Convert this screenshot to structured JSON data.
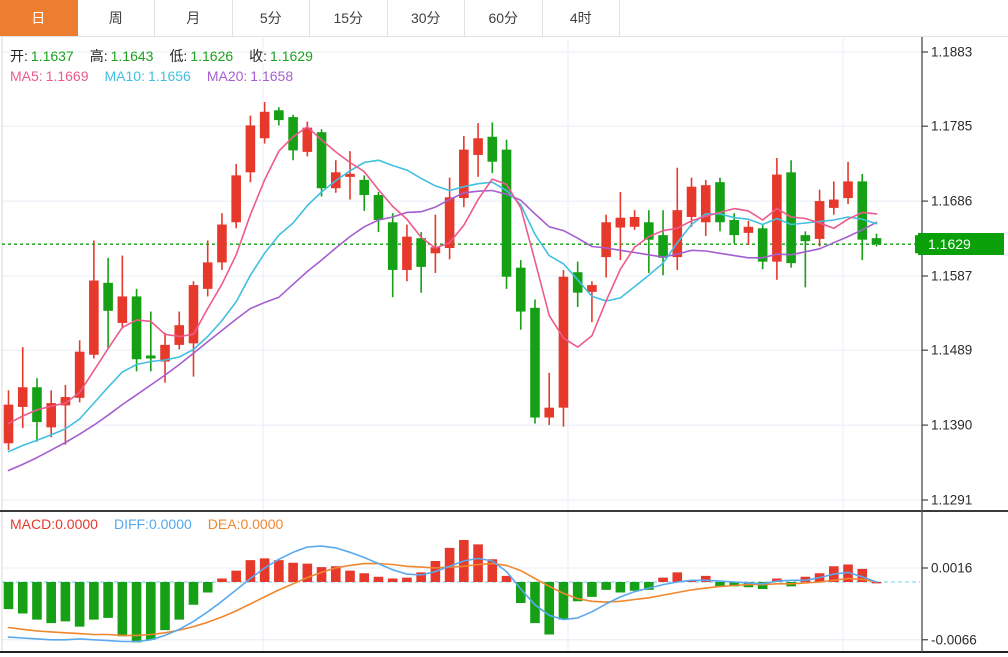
{
  "tabs": {
    "items": [
      {
        "label": "日",
        "active": true
      },
      {
        "label": "周",
        "active": false
      },
      {
        "label": "月",
        "active": false
      },
      {
        "label": "5分",
        "active": false
      },
      {
        "label": "15分",
        "active": false
      },
      {
        "label": "30分",
        "active": false
      },
      {
        "label": "60分",
        "active": false
      },
      {
        "label": "4时",
        "active": false
      }
    ]
  },
  "legend": {
    "ohlc": [
      {
        "label": "开:",
        "value": "1.1637"
      },
      {
        "label": "高:",
        "value": "1.1643"
      },
      {
        "label": "低:",
        "value": "1.1626"
      },
      {
        "label": "收:",
        "value": "1.1629"
      }
    ],
    "ma": [
      {
        "label": "MA5:",
        "value": "1.1669",
        "color": "#ee5a8d"
      },
      {
        "label": "MA10:",
        "value": "1.1656",
        "color": "#41c0e0"
      },
      {
        "label": "MA20:",
        "value": "1.1658",
        "color": "#a55fd0"
      }
    ],
    "macd": [
      {
        "label": "MACD:",
        "value": "0.0000",
        "color": "#e7382c"
      },
      {
        "label": "DIFF:",
        "value": "0.0000",
        "color": "#57a7ee"
      },
      {
        "label": "DEA:",
        "value": "0.0000",
        "color": "#f0872f"
      }
    ]
  },
  "colors": {
    "up": "#e7382c",
    "down": "#15a015",
    "tag_bg": "#0aa00a",
    "dotted_line": "#0aa00a",
    "ohlc_value": "#1ca21c",
    "grid": "#e7edf6",
    "axis_line": "#555555",
    "axis_text": "#2b2b2b",
    "separator": "#3a3a3a",
    "ma5": "#ee5a8d",
    "ma10": "#41c0e0",
    "ma20": "#a55fd0",
    "diff": "#5aa9ee",
    "dea": "#f0872f",
    "zero_dash": "#8fd8f2",
    "tab_active": "#ed7d31"
  },
  "chart_data": {
    "type": "candlestick+macd",
    "title": "",
    "legend_position": "top-left",
    "grid": true,
    "price_axis_ticks": [
      "1.1883",
      "1.1785",
      "1.1686",
      "1.1587",
      "1.1489",
      "1.1390",
      "1.1291"
    ],
    "macd_axis_ticks": [
      "0.0016",
      "-0.0066"
    ],
    "last_price": 1.1629,
    "last_price_label": "1.1629",
    "ylim_main": [
      1.1291,
      1.1883
    ],
    "ylim_macd": [
      -0.0066,
      0.0016
    ],
    "candles_ohlc": [
      [
        1.1366,
        1.1436,
        1.1357,
        1.1417
      ],
      [
        1.1414,
        1.1493,
        1.1386,
        1.144
      ],
      [
        1.144,
        1.1452,
        1.1368,
        1.1394
      ],
      [
        1.1387,
        1.1436,
        1.1374,
        1.1419
      ],
      [
        1.1416,
        1.1443,
        1.1364,
        1.1427
      ],
      [
        1.1426,
        1.1502,
        1.142,
        1.1487
      ],
      [
        1.1483,
        1.1634,
        1.1478,
        1.1581
      ],
      [
        1.1578,
        1.1611,
        1.1491,
        1.1541
      ],
      [
        1.1525,
        1.1614,
        1.1518,
        1.156
      ],
      [
        1.156,
        1.157,
        1.1461,
        1.1477
      ],
      [
        1.1482,
        1.154,
        1.1461,
        1.1478
      ],
      [
        1.1474,
        1.1512,
        1.1446,
        1.1496
      ],
      [
        1.1496,
        1.154,
        1.149,
        1.1522
      ],
      [
        1.1498,
        1.158,
        1.1454,
        1.1575
      ],
      [
        1.157,
        1.1634,
        1.156,
        1.1605
      ],
      [
        1.1605,
        1.167,
        1.1595,
        1.1655
      ],
      [
        1.1658,
        1.1735,
        1.165,
        1.172
      ],
      [
        1.1724,
        1.1799,
        1.1711,
        1.1786
      ],
      [
        1.1769,
        1.1817,
        1.1762,
        1.1804
      ],
      [
        1.1806,
        1.181,
        1.1786,
        1.1793
      ],
      [
        1.1797,
        1.18,
        1.174,
        1.1753
      ],
      [
        1.1751,
        1.1791,
        1.1745,
        1.1783
      ],
      [
        1.1777,
        1.1781,
        1.1692,
        1.1703
      ],
      [
        1.1703,
        1.174,
        1.1697,
        1.1724
      ],
      [
        1.1718,
        1.1752,
        1.1688,
        1.1722
      ],
      [
        1.1714,
        1.172,
        1.1673,
        1.1694
      ],
      [
        1.1694,
        1.1698,
        1.1645,
        1.1661
      ],
      [
        1.1658,
        1.167,
        1.1559,
        1.1595
      ],
      [
        1.1595,
        1.1655,
        1.158,
        1.1639
      ],
      [
        1.1637,
        1.1645,
        1.1565,
        1.1599
      ],
      [
        1.1617,
        1.1668,
        1.1591,
        1.1625
      ],
      [
        1.1624,
        1.1717,
        1.1609,
        1.1691
      ],
      [
        1.169,
        1.1772,
        1.1678,
        1.1754
      ],
      [
        1.1747,
        1.1789,
        1.1718,
        1.1769
      ],
      [
        1.1771,
        1.179,
        1.1723,
        1.1738
      ],
      [
        1.1754,
        1.1767,
        1.157,
        1.1586
      ],
      [
        1.1598,
        1.1608,
        1.1516,
        1.154
      ],
      [
        1.1545,
        1.1556,
        1.1392,
        1.14
      ],
      [
        1.14,
        1.1459,
        1.139,
        1.1413
      ],
      [
        1.1413,
        1.1595,
        1.1388,
        1.1586
      ],
      [
        1.1592,
        1.1606,
        1.1546,
        1.1565
      ],
      [
        1.1566,
        1.158,
        1.1526,
        1.1575
      ],
      [
        1.1612,
        1.1668,
        1.1585,
        1.1658
      ],
      [
        1.1651,
        1.1698,
        1.1608,
        1.1664
      ],
      [
        1.1652,
        1.1674,
        1.1648,
        1.1665
      ],
      [
        1.1658,
        1.1674,
        1.1591,
        1.1635
      ],
      [
        1.1641,
        1.1674,
        1.1588,
        1.1611
      ],
      [
        1.1612,
        1.173,
        1.1595,
        1.1674
      ],
      [
        1.1665,
        1.1717,
        1.1652,
        1.1705
      ],
      [
        1.1658,
        1.1714,
        1.164,
        1.1707
      ],
      [
        1.1711,
        1.1717,
        1.1646,
        1.1658
      ],
      [
        1.1661,
        1.167,
        1.163,
        1.1641
      ],
      [
        1.1644,
        1.166,
        1.1628,
        1.1652
      ],
      [
        1.165,
        1.1656,
        1.1596,
        1.1606
      ],
      [
        1.1606,
        1.1743,
        1.1582,
        1.1721
      ],
      [
        1.1724,
        1.174,
        1.1598,
        1.1604
      ],
      [
        1.1641,
        1.1646,
        1.1572,
        1.1633
      ],
      [
        1.1636,
        1.1701,
        1.1626,
        1.1686
      ],
      [
        1.1677,
        1.1712,
        1.1668,
        1.1688
      ],
      [
        1.169,
        1.1738,
        1.1682,
        1.1712
      ],
      [
        1.1712,
        1.1722,
        1.1608,
        1.1635
      ],
      [
        1.1637,
        1.1643,
        1.1626,
        1.1629
      ]
    ],
    "ma5": [
      1.1392,
      1.1402,
      1.141,
      1.1415,
      1.1419,
      1.1433,
      1.1462,
      1.1491,
      1.1519,
      1.1529,
      1.1527,
      1.151,
      1.1507,
      1.151,
      1.1544,
      1.1576,
      1.1615,
      1.1668,
      1.1714,
      1.1752,
      1.1771,
      1.1784,
      1.1767,
      1.1751,
      1.1737,
      1.1725,
      1.1701,
      1.1679,
      1.1662,
      1.1638,
      1.1624,
      1.1631,
      1.1654,
      1.1688,
      1.1715,
      1.1708,
      1.1677,
      1.1607,
      1.1535,
      1.1505,
      1.1493,
      1.1508,
      1.1554,
      1.1596,
      1.1625,
      1.1639,
      1.1647,
      1.165,
      1.166,
      1.1666,
      1.1671,
      1.1676,
      1.1673,
      1.1661,
      1.1676,
      1.1665,
      1.1663,
      1.1657,
      1.165,
      1.1662,
      1.1671,
      1.1669
    ],
    "ma10": [
      1.1355,
      1.1363,
      1.137,
      1.1377,
      1.1385,
      1.1398,
      1.1419,
      1.144,
      1.146,
      1.147,
      1.1474,
      1.1476,
      1.148,
      1.149,
      1.1507,
      1.1528,
      1.1553,
      1.1588,
      1.1617,
      1.1641,
      1.1657,
      1.168,
      1.1698,
      1.1713,
      1.1726,
      1.1737,
      1.174,
      1.1733,
      1.1727,
      1.1716,
      1.1706,
      1.17,
      1.1705,
      1.1709,
      1.1711,
      1.17,
      1.1681,
      1.1642,
      1.1614,
      1.1603,
      1.1582,
      1.156,
      1.1554,
      1.1558,
      1.1573,
      1.1588,
      1.1604,
      1.1631,
      1.1655,
      1.1669,
      1.1669,
      1.1664,
      1.1662,
      1.1655,
      1.1663,
      1.1655,
      1.1657,
      1.1659,
      1.1661,
      1.1665,
      1.1662,
      1.1656
    ],
    "ma20": [
      1.133,
      1.1338,
      1.1347,
      1.1357,
      1.1367,
      1.1378,
      1.139,
      1.1403,
      1.1417,
      1.143,
      1.1443,
      1.1456,
      1.147,
      1.1485,
      1.15,
      1.1515,
      1.153,
      1.1544,
      1.1552,
      1.1559,
      1.1576,
      1.1593,
      1.1608,
      1.1624,
      1.1639,
      1.1652,
      1.1661,
      1.1665,
      1.1671,
      1.1672,
      1.1678,
      1.1688,
      1.1697,
      1.1699,
      1.17,
      1.1695,
      1.1687,
      1.1669,
      1.1652,
      1.1647,
      1.1637,
      1.1626,
      1.1624,
      1.1621,
      1.1618,
      1.1615,
      1.1612,
      1.1616,
      1.1621,
      1.162,
      1.1617,
      1.1614,
      1.1611,
      1.1611,
      1.1616,
      1.1615,
      1.1619,
      1.1623,
      1.1631,
      1.1639,
      1.1648,
      1.1658
    ],
    "macd_hist": [
      -0.0031,
      -0.0036,
      -0.0043,
      -0.0047,
      -0.0045,
      -0.0051,
      -0.0043,
      -0.0041,
      -0.0062,
      -0.0069,
      -0.0066,
      -0.0055,
      -0.0043,
      -0.0026,
      -0.0012,
      0.0004,
      0.0013,
      0.0025,
      0.0027,
      0.0025,
      0.0022,
      0.0021,
      0.0017,
      0.0018,
      0.0013,
      0.001,
      0.0006,
      0.0004,
      0.0005,
      0.0011,
      0.0024,
      0.0039,
      0.0048,
      0.0043,
      0.0026,
      0.0007,
      -0.0024,
      -0.0047,
      -0.006,
      -0.0043,
      -0.0022,
      -0.0017,
      -0.0009,
      -0.0012,
      -0.001,
      -0.0009,
      0.0005,
      0.0011,
      0.0002,
      0.0007,
      -0.0005,
      -0.0005,
      -0.0006,
      -0.0008,
      0.0004,
      -0.0005,
      0.0006,
      0.001,
      0.0018,
      0.002,
      0.0015,
      0.0
    ],
    "diff_line": [
      -0.0063,
      -0.0064,
      -0.0065,
      -0.0066,
      -0.0066,
      -0.0065,
      -0.0066,
      -0.0067,
      -0.0068,
      -0.0068,
      -0.0066,
      -0.0061,
      -0.0054,
      -0.0045,
      -0.0034,
      -0.0022,
      -0.0009,
      0.0004,
      0.0016,
      0.0026,
      0.0034,
      0.004,
      0.0041,
      0.0039,
      0.0034,
      0.0028,
      0.0021,
      0.0014,
      0.0009,
      0.0008,
      0.0012,
      0.0018,
      0.0024,
      0.0027,
      0.0024,
      0.0012,
      -0.0008,
      -0.0026,
      -0.0038,
      -0.0043,
      -0.0041,
      -0.0034,
      -0.0025,
      -0.0017,
      -0.0011,
      -0.0007,
      -0.0003,
      0.0,
      0.0002,
      0.0002,
      0.0001,
      0.0,
      -0.0001,
      -0.0002,
      0.0001,
      0.0002,
      0.0002,
      0.0005,
      0.0009,
      0.0011,
      0.0006,
      0.0
    ],
    "dea_line": [
      -0.0052,
      -0.0054,
      -0.0056,
      -0.0057,
      -0.0058,
      -0.0059,
      -0.006,
      -0.006,
      -0.0061,
      -0.0061,
      -0.006,
      -0.0058,
      -0.0055,
      -0.0051,
      -0.0046,
      -0.004,
      -0.0033,
      -0.0025,
      -0.0017,
      -0.0009,
      -0.0002,
      0.0005,
      0.0011,
      0.0016,
      0.0019,
      0.0021,
      0.0021,
      0.002,
      0.0018,
      0.0017,
      0.0016,
      0.0017,
      0.0018,
      0.002,
      0.0021,
      0.0019,
      0.0013,
      0.0004,
      -0.0005,
      -0.0013,
      -0.0019,
      -0.0022,
      -0.0023,
      -0.0022,
      -0.002,
      -0.0018,
      -0.0015,
      -0.0012,
      -0.0009,
      -0.0007,
      -0.0005,
      -0.0004,
      -0.0003,
      -0.0003,
      -0.0002,
      -0.0002,
      -0.0001,
      0.0,
      0.0002,
      0.0004,
      0.0003,
      0.0
    ]
  }
}
